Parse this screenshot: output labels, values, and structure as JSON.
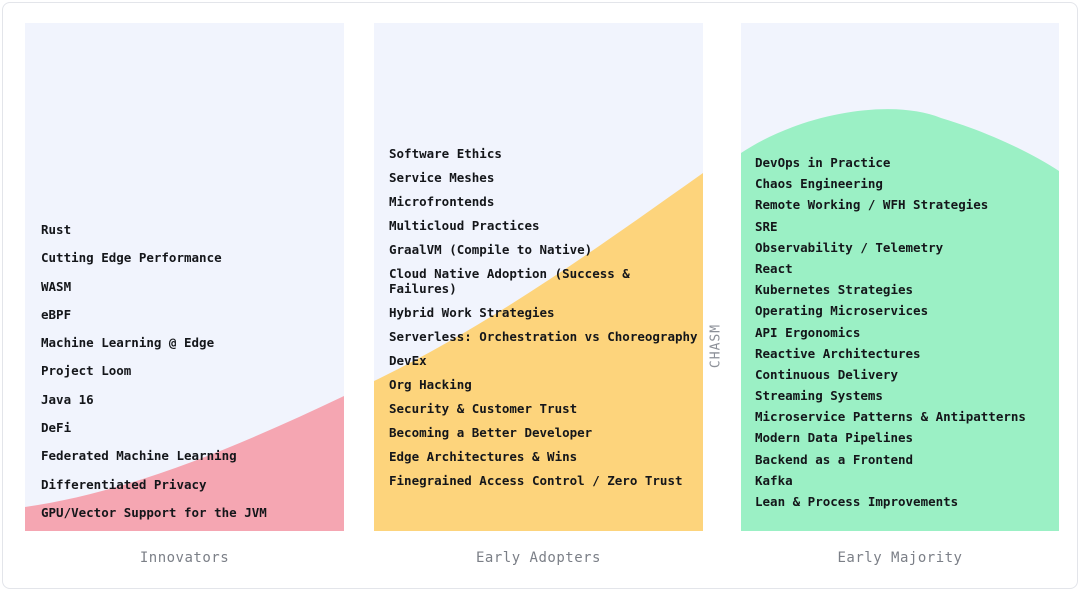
{
  "columns": [
    {
      "label": "Innovators",
      "color": "#f5a6b2",
      "items": [
        "Rust",
        "Cutting Edge Performance",
        "WASM",
        "eBPF",
        "Machine Learning @ Edge",
        "Project Loom",
        "Java 16",
        "DeFi",
        "Federated Machine Learning",
        "Differentiated Privacy",
        "GPU/Vector Support for the JVM"
      ]
    },
    {
      "label": "Early Adopters",
      "color": "#fdd47c",
      "items": [
        "Software Ethics",
        "Service Meshes",
        "Microfrontends",
        "Multicloud Practices",
        "GraalVM (Compile to Native)",
        "Cloud Native Adoption (Success & Failures)",
        "Hybrid Work Strategies",
        "Serverless: Orchestration vs Choreography",
        "DevEx",
        "Org Hacking",
        "Security & Customer Trust",
        "Becoming a Better Developer",
        "Edge Architectures & Wins",
        "Finegrained Access Control / Zero Trust"
      ]
    },
    {
      "label": "Early Majority",
      "color": "#9bf0c5",
      "items": [
        "DevOps in Practice",
        "Chaos Engineering",
        "Remote Working / WFH Strategies",
        "SRE",
        "Observability / Telemetry",
        "React",
        "Kubernetes Strategies",
        "Operating Microservices",
        "API Ergonomics",
        "Reactive Architectures",
        "Continuous Delivery",
        "Streaming Systems",
        "Microservice Patterns & Antipatterns",
        "Modern Data Pipelines",
        "Backend as a Frontend",
        "Kafka",
        "Lean & Process Improvements"
      ]
    }
  ],
  "chasm_label": "CHASM"
}
